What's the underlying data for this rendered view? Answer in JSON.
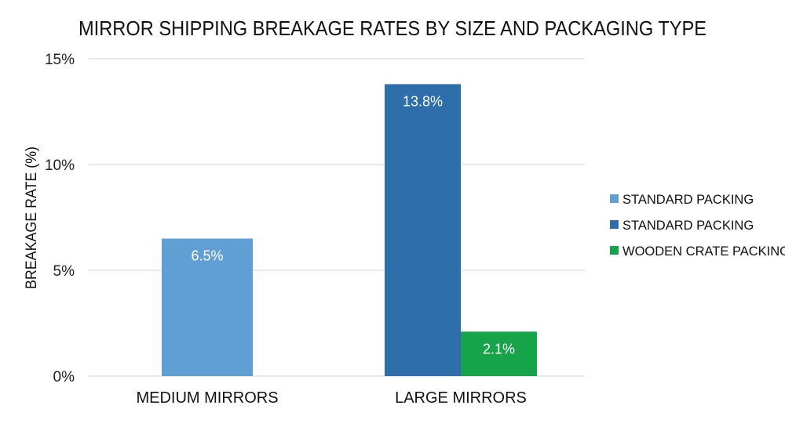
{
  "chart_data": {
    "type": "bar",
    "title": "MIRROR SHIPPING BREAKAGE RATES BY SIZE AND PACKAGING TYPE",
    "xlabel": "",
    "ylabel": "BREAKAGE RATE (%)",
    "ylim": [
      0,
      15
    ],
    "yticks": [
      0,
      5,
      10,
      15
    ],
    "ytick_labels": [
      "0%",
      "5%",
      "10%",
      "15%"
    ],
    "grid": true,
    "legend_position": "right",
    "categories": [
      "MEDIUM MIRRORS",
      "LARGE MIRRORS"
    ],
    "series": [
      {
        "name": "STANDARD PACKING",
        "color": "#5f9fd4",
        "values": [
          6.5,
          null
        ],
        "labels": [
          "6.5%",
          null
        ]
      },
      {
        "name": "STANDARD PACKING",
        "color": "#2e6fab",
        "values": [
          null,
          13.8
        ],
        "labels": [
          null,
          "13.8%"
        ]
      },
      {
        "name": "WOODEN CRATE PACKING",
        "color": "#17a34a",
        "values": [
          null,
          2.1
        ],
        "labels": [
          null,
          "2.1%"
        ]
      }
    ]
  }
}
